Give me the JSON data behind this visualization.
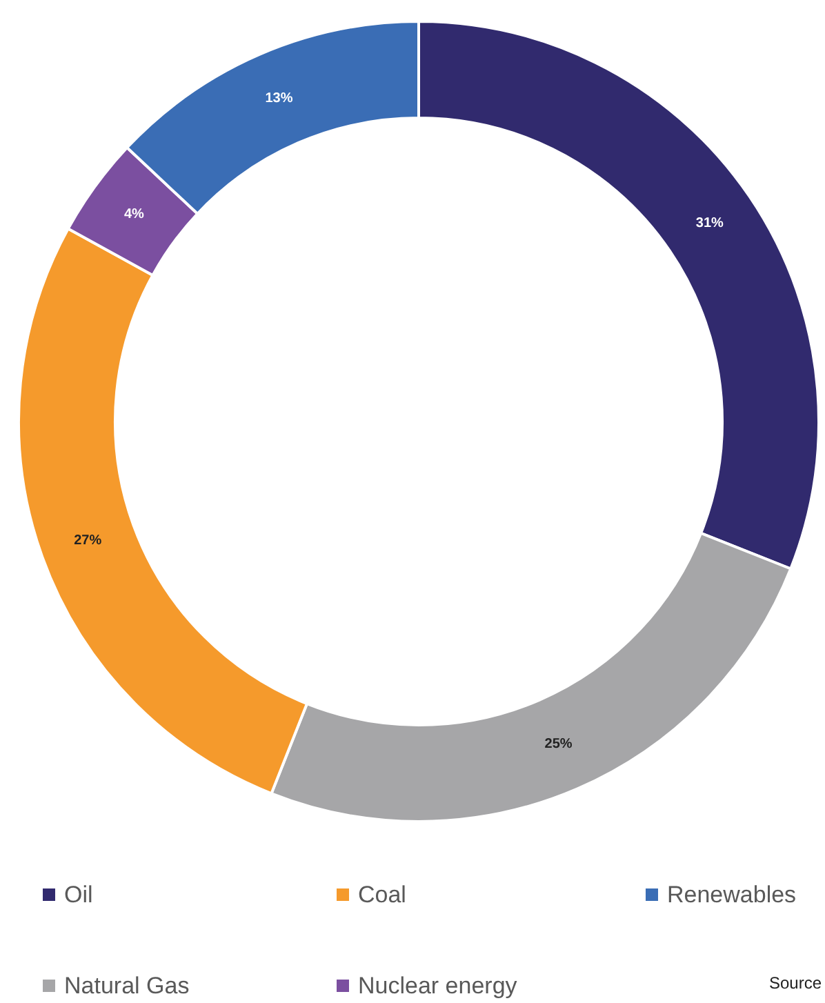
{
  "chart_data": {
    "type": "donut",
    "categories": [
      "Oil",
      "Natural Gas",
      "Coal",
      "Nuclear energy",
      "Renewables"
    ],
    "values": [
      31,
      25,
      27,
      4,
      13
    ],
    "colors": [
      "#312a6e",
      "#a6a6a8",
      "#f59a2c",
      "#7b4fa0",
      "#3a6db5"
    ],
    "value_labels": [
      "31%",
      "25%",
      "27%",
      "4%",
      "13%"
    ],
    "legend": "bottom",
    "annotations": [
      "Source"
    ]
  }
}
